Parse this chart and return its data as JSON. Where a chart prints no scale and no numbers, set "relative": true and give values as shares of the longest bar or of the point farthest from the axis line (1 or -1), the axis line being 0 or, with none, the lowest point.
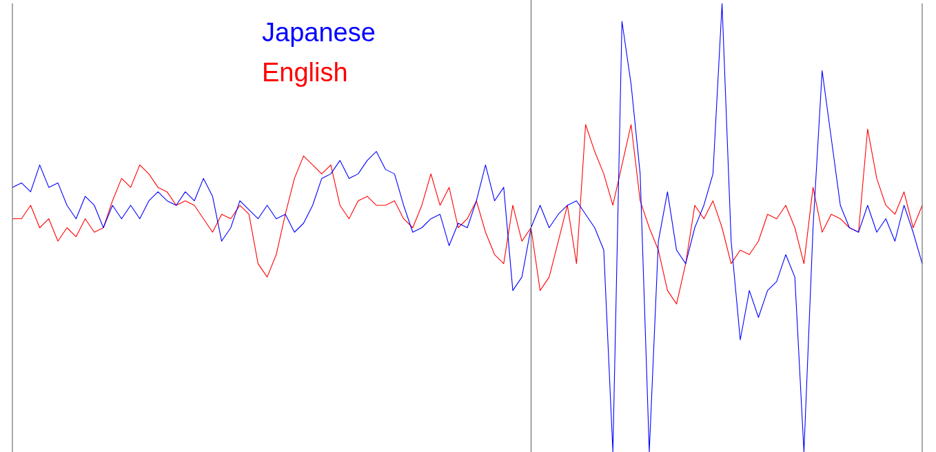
{
  "chart_data": {
    "type": "line",
    "relative": true,
    "grid": false,
    "marker": "none",
    "line_style": "solid",
    "categories": [
      null,
      null,
      null,
      null,
      null,
      null,
      null,
      null,
      null,
      null,
      null,
      null,
      null,
      null,
      null,
      null,
      null,
      null,
      null,
      null,
      null,
      null,
      null,
      null,
      null,
      null,
      null,
      null,
      null,
      null,
      null,
      null,
      null,
      null,
      null,
      null,
      null,
      null,
      null,
      null,
      null,
      null,
      null,
      null,
      null,
      null,
      null,
      null,
      null,
      null,
      null,
      null,
      null,
      null,
      null,
      null,
      null,
      null,
      null,
      null,
      null,
      null,
      null,
      null,
      null,
      null,
      null,
      null,
      null,
      null,
      null,
      null,
      null,
      null,
      null,
      null,
      null,
      null,
      null,
      null,
      null,
      null,
      null,
      null,
      null,
      null,
      null,
      null,
      null,
      null,
      null,
      null,
      null,
      null,
      null,
      null,
      null,
      null,
      null,
      null,
      null
    ],
    "series": [
      {
        "name": "Japanese",
        "color": "#0000ff",
        "values": [
          0.59,
          0.6,
          0.58,
          0.64,
          0.59,
          0.6,
          0.55,
          0.52,
          0.57,
          0.55,
          0.5,
          0.55,
          0.52,
          0.55,
          0.52,
          0.56,
          0.58,
          0.56,
          0.55,
          0.58,
          0.56,
          0.61,
          0.57,
          0.47,
          0.5,
          0.56,
          0.54,
          0.52,
          0.55,
          0.52,
          0.53,
          0.49,
          0.51,
          0.55,
          0.61,
          0.62,
          0.65,
          0.61,
          0.62,
          0.65,
          0.67,
          0.63,
          0.62,
          0.55,
          0.49,
          0.5,
          0.52,
          0.53,
          0.46,
          0.51,
          0.5,
          0.56,
          0.64,
          0.56,
          0.59,
          0.36,
          0.39,
          0.5,
          0.55,
          0.5,
          0.53,
          0.55,
          0.56,
          0.53,
          0.5,
          0.45,
          0,
          0.96,
          0.82,
          0.62,
          0,
          0.47,
          0.58,
          0.45,
          0.42,
          0.5,
          0.55,
          0.62,
          1.0,
          0.47,
          0.25,
          0.36,
          0.3,
          0.36,
          0.38,
          0.44,
          0.39,
          0,
          0.5,
          0.85,
          0.7,
          0.55,
          0.5,
          0.49,
          0.55,
          0.49,
          0.52,
          0.47,
          0.55,
          0.49,
          0.42
        ]
      },
      {
        "name": "English",
        "color": "#ff0000",
        "values": [
          0.52,
          0.52,
          0.55,
          0.5,
          0.52,
          0.47,
          0.5,
          0.48,
          0.52,
          0.49,
          0.5,
          0.56,
          0.61,
          0.59,
          0.64,
          0.62,
          0.59,
          0.58,
          0.55,
          0.56,
          0.55,
          0.52,
          0.49,
          0.53,
          0.52,
          0.55,
          0.53,
          0.42,
          0.39,
          0.44,
          0.53,
          0.61,
          0.66,
          0.64,
          0.62,
          0.64,
          0.55,
          0.52,
          0.56,
          0.57,
          0.55,
          0.55,
          0.56,
          0.52,
          0.5,
          0.55,
          0.62,
          0.55,
          0.59,
          0.5,
          0.52,
          0.56,
          0.49,
          0.44,
          0.42,
          0.55,
          0.47,
          0.5,
          0.36,
          0.39,
          0.47,
          0.55,
          0.42,
          0.73,
          0.67,
          0.62,
          0.55,
          0.64,
          0.73,
          0.56,
          0.5,
          0.45,
          0.36,
          0.33,
          0.42,
          0.55,
          0.52,
          0.56,
          0.5,
          0.42,
          0.45,
          0.44,
          0.47,
          0.53,
          0.52,
          0.55,
          0.5,
          0.42,
          0.59,
          0.49,
          0.53,
          0.52,
          0.5,
          0.49,
          0.72,
          0.61,
          0.55,
          0.53,
          0.58,
          0.5,
          0.55
        ]
      }
    ]
  }
}
